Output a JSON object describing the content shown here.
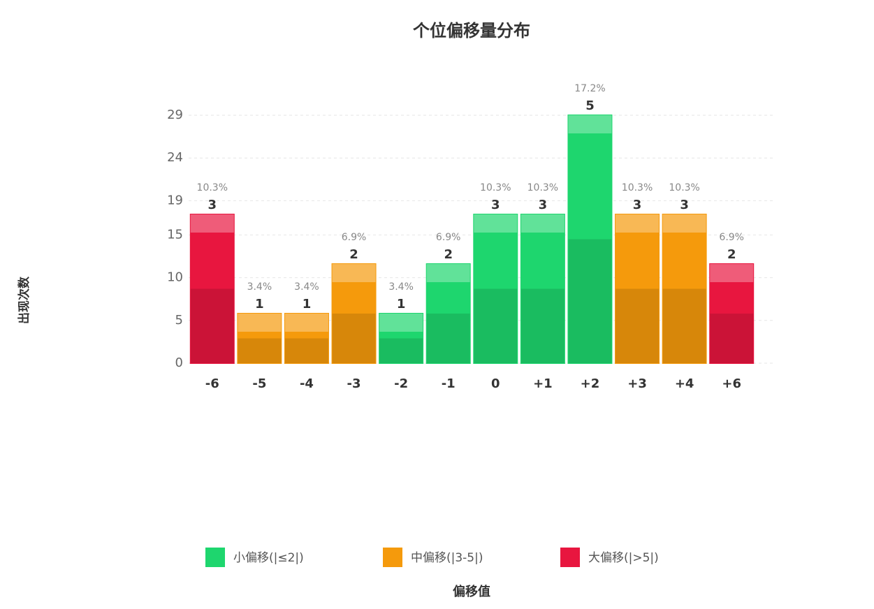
{
  "chart_data": {
    "type": "bar",
    "title": "个位偏移量分布",
    "x_label": "偏移值",
    "y_label": "出现次数",
    "categories": [
      "-6",
      "-5",
      "-4",
      "-3",
      "-2",
      "-1",
      "0",
      "+1",
      "+2",
      "+3",
      "+4",
      "+6"
    ],
    "values": [
      17.4,
      5.8,
      5.8,
      11.6,
      5.8,
      11.6,
      17.4,
      17.4,
      29,
      17.4,
      17.4,
      11.6
    ],
    "value_labels": [
      "3",
      "1",
      "1",
      "2",
      "1",
      "2",
      "3",
      "3",
      "5",
      "3",
      "3",
      "2"
    ],
    "percent_labels": [
      "10.3%",
      "3.4%",
      "3.4%",
      "6.9%",
      "3.4%",
      "6.9%",
      "10.3%",
      "10.3%",
      "17.2%",
      "10.3%",
      "10.3%",
      "6.9%"
    ],
    "colors": [
      "#e8163f",
      "#f59a0c",
      "#f59a0c",
      "#f59a0c",
      "#1ed66e",
      "#1ed66e",
      "#1ed66e",
      "#1ed66e",
      "#1ed66e",
      "#f59a0c",
      "#f59a0c",
      "#e8163f"
    ],
    "legend": [
      {
        "name": "小偏移(|≤2|)",
        "color": "#1ed66e"
      },
      {
        "name": "中偏移(|3-5|)",
        "color": "#f59a0c"
      },
      {
        "name": "大偏移(|>5|)",
        "color": "#e8163f"
      }
    ],
    "ylim": [
      0,
      29
    ],
    "yticks": [
      0,
      5,
      10,
      15,
      19,
      24,
      29
    ],
    "grid": true
  }
}
